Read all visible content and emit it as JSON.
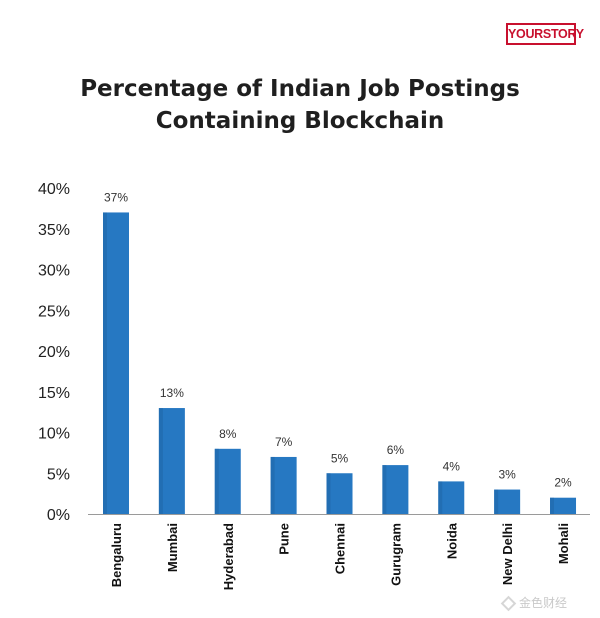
{
  "brand": {
    "logo_text": "YOURSTORY",
    "logo_color": "#c8102e"
  },
  "watermark": {
    "text": "金色财经"
  },
  "chart_data": {
    "type": "bar",
    "title": [
      "Percentage of Indian Job Postings",
      "Containing Blockchain"
    ],
    "xlabel": "",
    "ylabel": "",
    "categories": [
      "Bengaluru",
      "Mumbai",
      "Hyderabad",
      "Pune",
      "Chennai",
      "Gurugram",
      "Noida",
      "New Delhi",
      "Mohali"
    ],
    "values": [
      37,
      13,
      8,
      7,
      5,
      6,
      4,
      3,
      2
    ],
    "data_labels": [
      "37%",
      "13%",
      "8%",
      "7%",
      "5%",
      "6%",
      "4%",
      "3%",
      "2%"
    ],
    "ylim": [
      0,
      40
    ],
    "yticks": [
      "0%",
      "5%",
      "10%",
      "15%",
      "20%",
      "25%",
      "30%",
      "35%",
      "40%"
    ],
    "bar_color": "#2678c2",
    "grid": false,
    "legend": "none"
  }
}
